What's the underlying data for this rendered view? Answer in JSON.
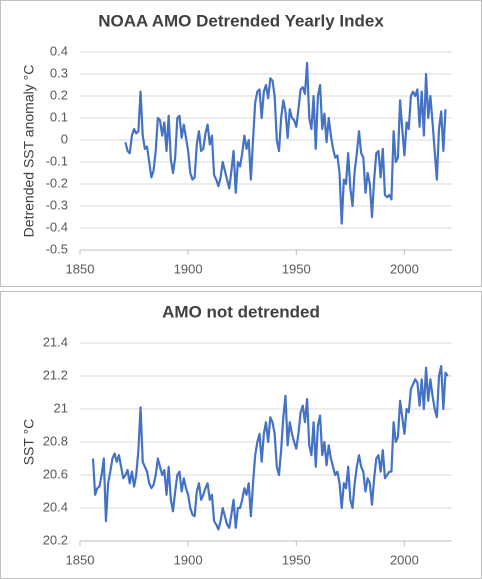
{
  "chart_data": [
    {
      "type": "line",
      "title": "NOAA AMO Detrended Yearly Index",
      "y_label": "Detrended SST anomaly °C",
      "xlim": [
        1850,
        2022
      ],
      "xticks": [
        1850,
        1900,
        1950,
        2000
      ],
      "ylim": [
        -0.5,
        0.4
      ],
      "yticks": [
        -0.5,
        -0.4,
        -0.3,
        -0.2,
        -0.1,
        0,
        0.1,
        0.2,
        0.3,
        0.4
      ],
      "grid": true,
      "x": [
        1871,
        1872,
        1873,
        1874,
        1875,
        1876,
        1877,
        1878,
        1879,
        1880,
        1881,
        1882,
        1883,
        1884,
        1885,
        1886,
        1887,
        1888,
        1889,
        1890,
        1891,
        1892,
        1893,
        1894,
        1895,
        1896,
        1897,
        1898,
        1899,
        1900,
        1901,
        1902,
        1903,
        1904,
        1905,
        1906,
        1907,
        1908,
        1909,
        1910,
        1911,
        1912,
        1913,
        1914,
        1915,
        1916,
        1917,
        1918,
        1919,
        1920,
        1921,
        1922,
        1923,
        1924,
        1925,
        1926,
        1927,
        1928,
        1929,
        1930,
        1931,
        1932,
        1933,
        1934,
        1935,
        1936,
        1937,
        1938,
        1939,
        1940,
        1941,
        1942,
        1943,
        1944,
        1945,
        1946,
        1947,
        1948,
        1949,
        1950,
        1951,
        1952,
        1953,
        1954,
        1955,
        1956,
        1957,
        1958,
        1959,
        1960,
        1961,
        1962,
        1963,
        1964,
        1965,
        1966,
        1967,
        1968,
        1969,
        1970,
        1971,
        1972,
        1973,
        1974,
        1975,
        1976,
        1977,
        1978,
        1979,
        1980,
        1981,
        1982,
        1983,
        1984,
        1985,
        1986,
        1987,
        1988,
        1989,
        1990,
        1991,
        1992,
        1993,
        1994,
        1995,
        1996,
        1997,
        1998,
        1999,
        2000,
        2001,
        2002,
        2003,
        2004,
        2005,
        2006,
        2007,
        2008,
        2009,
        2010,
        2011,
        2012,
        2013,
        2014,
        2015,
        2016,
        2017,
        2018,
        2019
      ],
      "series": [
        {
          "color": "#4472c4",
          "values": [
            -0.01,
            -0.05,
            -0.06,
            0.02,
            0.05,
            0.03,
            0.04,
            0.22,
            0.02,
            -0.04,
            -0.03,
            -0.1,
            -0.17,
            -0.14,
            -0.05,
            0.1,
            0.09,
            0.02,
            0.08,
            -0.05,
            0.11,
            -0.09,
            -0.15,
            -0.08,
            0.1,
            0.11,
            0.01,
            0.07,
            0.01,
            -0.05,
            -0.15,
            -0.18,
            -0.17,
            -0.02,
            0.04,
            -0.05,
            -0.04,
            0.03,
            0.07,
            -0.02,
            0.02,
            -0.16,
            -0.18,
            -0.21,
            -0.17,
            -0.1,
            -0.14,
            -0.18,
            -0.22,
            -0.14,
            -0.05,
            -0.24,
            -0.1,
            -0.12,
            -0.06,
            0.02,
            -0.04,
            0,
            -0.18,
            0,
            0.17,
            0.22,
            0.23,
            0.1,
            0.22,
            0.25,
            0.19,
            0.28,
            0.27,
            0.2,
            0,
            -0.05,
            0.1,
            0.18,
            0.13,
            0.01,
            0.14,
            0.1,
            0.09,
            0.06,
            0.14,
            0.23,
            0.24,
            0.21,
            0.35,
            0.1,
            0.05,
            0.2,
            -0.04,
            0.2,
            0.25,
            0.05,
            0.12,
            -0.01,
            0.1,
            0.02,
            -0.04,
            -0.08,
            -0.07,
            -0.15,
            -0.38,
            -0.18,
            -0.2,
            -0.06,
            -0.22,
            -0.3,
            -0.14,
            -0.06,
            0.04,
            -0.06,
            -0.08,
            -0.24,
            -0.15,
            -0.2,
            -0.35,
            -0.18,
            -0.06,
            -0.05,
            -0.17,
            -0.04,
            -0.25,
            -0.26,
            -0.25,
            -0.27,
            0.04,
            -0.1,
            -0.08,
            0.18,
            0.05,
            -0.07,
            0.08,
            0.05,
            0.2,
            0.22,
            0.2,
            0.23,
            0.06,
            0.22,
            0.02,
            0.3,
            0.1,
            0.2,
            0.08,
            -0.05,
            -0.18,
            0.05,
            0.13,
            -0.05,
            0.14
          ]
        }
      ]
    },
    {
      "type": "line",
      "title": "AMO not detrended",
      "y_label": "SST °C",
      "xlim": [
        1850,
        2022
      ],
      "xticks": [
        1850,
        1900,
        1950,
        2000
      ],
      "ylim": [
        20.2,
        21.4
      ],
      "yticks": [
        20.2,
        20.4,
        20.6,
        20.8,
        21,
        21.2,
        21.4
      ],
      "grid": true,
      "x": [
        1856,
        1857,
        1858,
        1859,
        1860,
        1861,
        1862,
        1863,
        1864,
        1865,
        1866,
        1867,
        1868,
        1869,
        1870,
        1871,
        1872,
        1873,
        1874,
        1875,
        1876,
        1877,
        1878,
        1879,
        1880,
        1881,
        1882,
        1883,
        1884,
        1885,
        1886,
        1887,
        1888,
        1889,
        1890,
        1891,
        1892,
        1893,
        1894,
        1895,
        1896,
        1897,
        1898,
        1899,
        1900,
        1901,
        1902,
        1903,
        1904,
        1905,
        1906,
        1907,
        1908,
        1909,
        1910,
        1911,
        1912,
        1913,
        1914,
        1915,
        1916,
        1917,
        1918,
        1919,
        1920,
        1921,
        1922,
        1923,
        1924,
        1925,
        1926,
        1927,
        1928,
        1929,
        1930,
        1931,
        1932,
        1933,
        1934,
        1935,
        1936,
        1937,
        1938,
        1939,
        1940,
        1941,
        1942,
        1943,
        1944,
        1945,
        1946,
        1947,
        1948,
        1949,
        1950,
        1951,
        1952,
        1953,
        1954,
        1955,
        1956,
        1957,
        1958,
        1959,
        1960,
        1961,
        1962,
        1963,
        1964,
        1965,
        1966,
        1967,
        1968,
        1969,
        1970,
        1971,
        1972,
        1973,
        1974,
        1975,
        1976,
        1977,
        1978,
        1979,
        1980,
        1981,
        1982,
        1983,
        1984,
        1985,
        1986,
        1987,
        1988,
        1989,
        1990,
        1991,
        1992,
        1993,
        1994,
        1995,
        1996,
        1997,
        1998,
        1999,
        2000,
        2001,
        2002,
        2003,
        2004,
        2005,
        2006,
        2007,
        2008,
        2009,
        2010,
        2011,
        2012,
        2013,
        2014,
        2015,
        2016,
        2017,
        2018,
        2019,
        2020
      ],
      "series": [
        {
          "color": "#4472c4",
          "values": [
            20.7,
            20.48,
            20.52,
            20.53,
            20.6,
            20.7,
            20.32,
            20.55,
            20.62,
            20.7,
            20.73,
            20.68,
            20.72,
            20.65,
            20.58,
            20.6,
            20.63,
            20.55,
            20.62,
            20.53,
            20.6,
            20.75,
            21.01,
            20.68,
            20.65,
            20.62,
            20.55,
            20.52,
            20.54,
            20.6,
            20.7,
            20.65,
            20.6,
            20.63,
            20.48,
            20.65,
            20.45,
            20.38,
            20.5,
            20.6,
            20.62,
            20.5,
            20.58,
            20.52,
            20.48,
            20.4,
            20.36,
            20.35,
            20.5,
            20.55,
            20.45,
            20.48,
            20.52,
            20.55,
            20.45,
            20.48,
            20.32,
            20.3,
            20.27,
            20.32,
            20.4,
            20.35,
            20.3,
            20.28,
            20.36,
            20.45,
            20.28,
            20.4,
            20.4,
            20.45,
            20.52,
            20.48,
            20.55,
            20.35,
            20.55,
            20.72,
            20.8,
            20.85,
            20.68,
            20.85,
            20.92,
            20.8,
            20.95,
            20.92,
            20.85,
            20.65,
            20.6,
            20.75,
            20.95,
            21.08,
            20.78,
            20.92,
            20.85,
            20.8,
            20.76,
            20.85,
            20.98,
            21.02,
            20.92,
            21.06,
            20.78,
            20.72,
            20.92,
            20.65,
            20.9,
            20.96,
            20.72,
            20.8,
            20.66,
            20.78,
            20.7,
            20.65,
            20.6,
            20.62,
            20.55,
            20.4,
            20.55,
            20.52,
            20.65,
            20.45,
            20.4,
            20.55,
            20.65,
            20.72,
            20.65,
            20.62,
            20.5,
            20.58,
            20.55,
            20.42,
            20.58,
            20.7,
            20.72,
            20.62,
            20.75,
            20.58,
            20.6,
            20.62,
            20.62,
            20.92,
            20.8,
            20.83,
            21.05,
            20.95,
            20.85,
            21,
            20.98,
            21.12,
            21.15,
            21.18,
            21.16,
            21.02,
            21.18,
            21,
            21.25,
            21.05,
            21.18,
            21.08,
            21,
            20.95,
            21.2,
            21.26,
            21,
            21.22,
            21.2
          ]
        }
      ]
    }
  ]
}
